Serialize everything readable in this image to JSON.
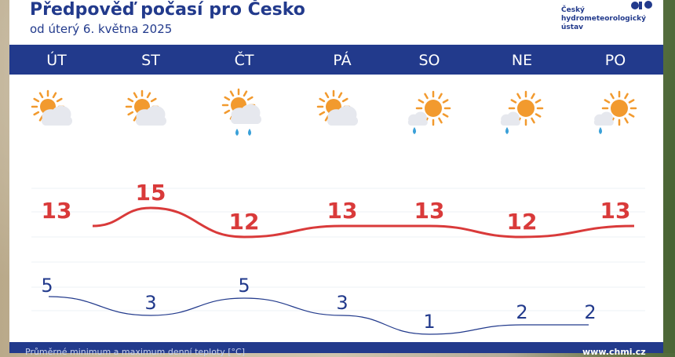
{
  "header": {
    "title": "Předpověď počasí pro Česko",
    "subtitle": "od úterý 6. května 2025"
  },
  "logo": {
    "line1": "Český",
    "line2": "hydrometeorologický",
    "line3": "ústav"
  },
  "days": [
    {
      "label": "ÚT",
      "icon": "sun-behind-cloud-icon",
      "max": 13,
      "min": 5
    },
    {
      "label": "ST",
      "icon": "sun-behind-cloud-icon",
      "max": 15,
      "min": 3
    },
    {
      "label": "ČT",
      "icon": "sun-cloud-rain-icon",
      "max": 12,
      "min": 5
    },
    {
      "label": "PÁ",
      "icon": "sun-behind-cloud-icon",
      "max": 13,
      "min": 3
    },
    {
      "label": "SO",
      "icon": "sun-small-cloud-drizzle-icon",
      "max": 13,
      "min": 1
    },
    {
      "label": "NE",
      "icon": "sun-small-cloud-drizzle-icon",
      "max": 12,
      "min": 2
    },
    {
      "label": "PO",
      "icon": "sun-small-cloud-drizzle-icon",
      "max": 13,
      "min": 2
    }
  ],
  "footer": {
    "left": "Průměrné minimum a maximum denní teploty [°C]",
    "right": "www.chmi.cz"
  },
  "colors": {
    "brand": "#223a8c",
    "max_temp": "#d93a3a",
    "sun": "#f29a2e",
    "cloud": "#e6e8ee",
    "rain": "#3aa0d8"
  }
}
